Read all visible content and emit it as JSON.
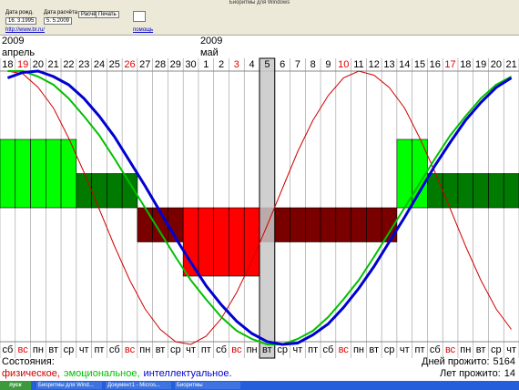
{
  "window": {
    "title": "Биоритмы для Windows",
    "birth_label": "Дата рожд.",
    "birth_date": "16. 3.1995",
    "calc_label": "Дата расчёта",
    "calc_date": " 5. 5.2009",
    "buttons": [
      "Расчёт",
      "Печать"
    ],
    "link": "http://www.br.ru/",
    "help": "помощь"
  },
  "chart_data": {
    "type": "biorhythm",
    "months": [
      {
        "year": "2009",
        "month": "апрель",
        "start": "18"
      },
      {
        "year": "2009",
        "month": "май",
        "start": "1"
      }
    ],
    "categories": [
      "18",
      "19",
      "20",
      "21",
      "22",
      "23",
      "24",
      "25",
      "26",
      "27",
      "28",
      "29",
      "30",
      "1",
      "2",
      "3",
      "4",
      "5",
      "6",
      "7",
      "8",
      "9",
      "10",
      "11",
      "12",
      "13",
      "14",
      "15",
      "16",
      "17",
      "18",
      "19",
      "20",
      "21"
    ],
    "weekdays": [
      "сб",
      "вс",
      "пн",
      "вт",
      "ср",
      "чт",
      "пт",
      "сб",
      "вс",
      "пн",
      "вт",
      "ср",
      "чт",
      "пт",
      "сб",
      "вс",
      "пн",
      "вт",
      "ср",
      "чт",
      "пт",
      "сб",
      "вс",
      "пн",
      "вт",
      "ср",
      "чт",
      "пт",
      "сб",
      "вс",
      "пн",
      "вт",
      "ср",
      "чт"
    ],
    "red_weekday": "вс",
    "selected_index": 17,
    "ylim": [
      -1,
      1
    ],
    "state_lim": [
      -4,
      4
    ],
    "states": [
      2,
      2,
      2,
      2,
      2,
      1,
      1,
      1,
      1,
      -1,
      -1,
      -1,
      -2,
      -2,
      -2,
      -2,
      -2,
      -1,
      -1,
      -1,
      -1,
      -1,
      -1,
      -1,
      -1,
      -1,
      2,
      2,
      1,
      1,
      1,
      1,
      1,
      1
    ],
    "state_colors": {
      "2": "#00ff00",
      "1": "#007a00",
      "-1": "#7a0000",
      "-2": "#ff0000"
    },
    "status_label": "Состояния:",
    "series": [
      {
        "name": "физическое,",
        "color": "#d00000",
        "width": 1,
        "values": [
          1.0,
          0.98,
          0.88,
          0.73,
          0.51,
          0.26,
          -0.01,
          -0.28,
          -0.53,
          -0.74,
          -0.89,
          -0.98,
          -1.0,
          -0.94,
          -0.81,
          -0.62,
          -0.39,
          -0.13,
          0.14,
          0.41,
          0.64,
          0.82,
          0.95,
          1.0,
          0.97,
          0.88,
          0.73,
          0.51,
          0.26,
          -0.01,
          -0.28,
          -0.53,
          -0.74,
          -0.89
        ]
      },
      {
        "name": "эмоциональное,",
        "color": "#00c000",
        "width": 2,
        "values": [
          1.0,
          1.0,
          0.96,
          0.9,
          0.8,
          0.67,
          0.53,
          0.36,
          0.18,
          0.0,
          -0.18,
          -0.36,
          -0.53,
          -0.67,
          -0.8,
          -0.9,
          -0.96,
          -1.0,
          -1.0,
          -0.96,
          -0.9,
          -0.8,
          -0.67,
          -0.53,
          -0.36,
          -0.18,
          0.0,
          0.18,
          0.36,
          0.53,
          0.67,
          0.8,
          0.9,
          0.96
        ]
      },
      {
        "name": "интеллектуальное.",
        "color": "#0000d0",
        "width": 3,
        "values": [
          0.95,
          0.99,
          1.0,
          0.96,
          0.9,
          0.8,
          0.67,
          0.52,
          0.34,
          0.16,
          -0.03,
          -0.22,
          -0.4,
          -0.57,
          -0.71,
          -0.83,
          -0.92,
          -0.98,
          -1.0,
          -0.99,
          -0.93,
          -0.85,
          -0.73,
          -0.59,
          -0.43,
          -0.25,
          -0.07,
          0.12,
          0.31,
          0.48,
          0.64,
          0.77,
          0.88,
          0.95
        ]
      }
    ],
    "days_label": "Дней прожито:",
    "days_lived": 5164,
    "years_label": "Лет прожито:",
    "years_lived": 14
  },
  "taskbar": {
    "start": "пуск",
    "items": [
      "Биоритмы для Wind...",
      "Документ1 - Micros...",
      "Биоритмы"
    ]
  }
}
